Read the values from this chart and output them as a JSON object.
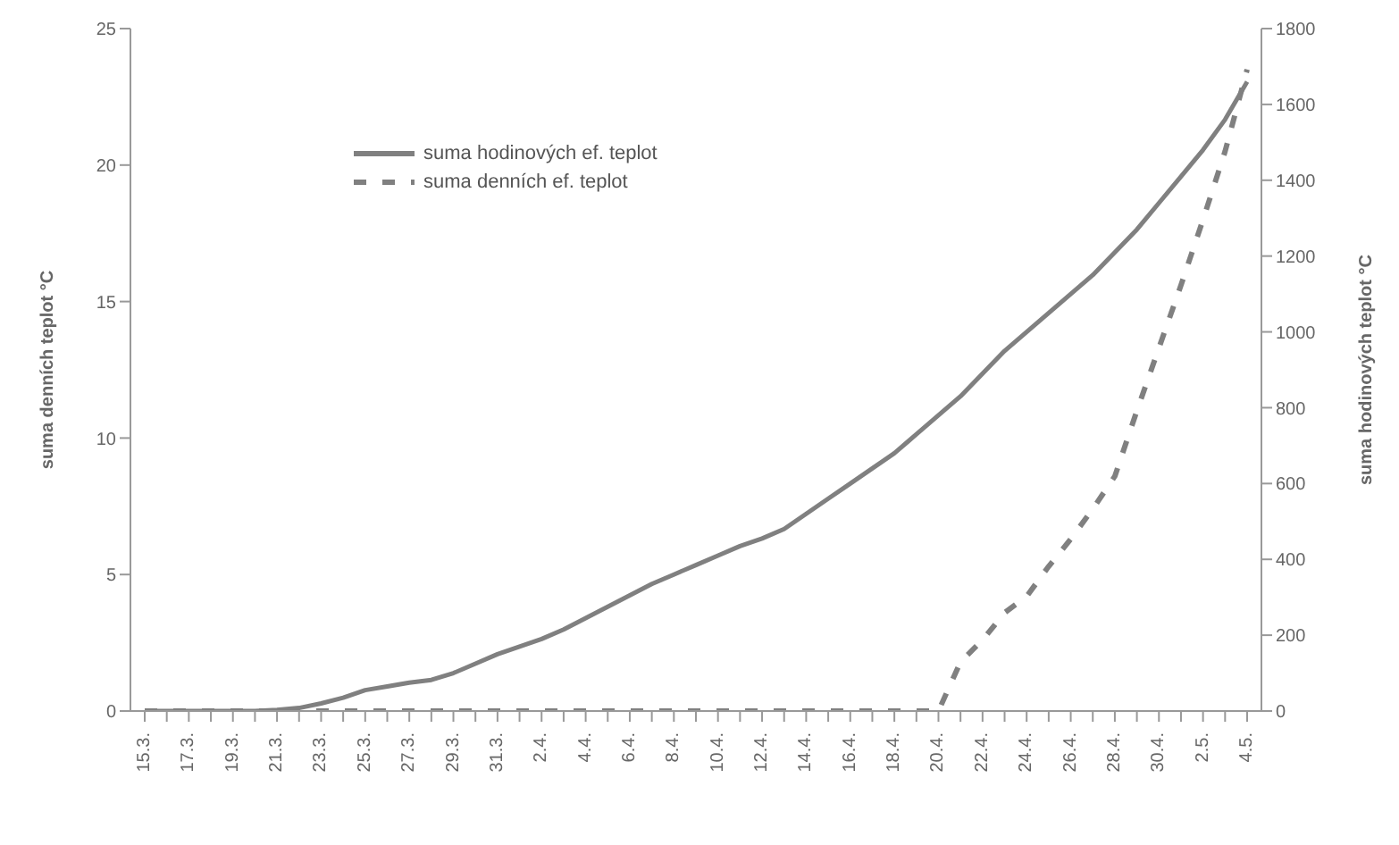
{
  "chart_data": {
    "type": "line",
    "ylabel": "suma denních teplot °C",
    "y2label": "suma hodinových teplot °C",
    "categories": [
      "15.3.",
      null,
      "17.3.",
      null,
      "19.3.",
      null,
      "21.3.",
      null,
      "23.3.",
      null,
      "25.3.",
      null,
      "27.3.",
      null,
      "29.3.",
      null,
      "31.3.",
      null,
      "2.4.",
      null,
      "4.4.",
      null,
      "6.4.",
      null,
      "8.4.",
      null,
      "10.4.",
      null,
      "12.4.",
      null,
      "14.4.",
      null,
      "16.4.",
      null,
      "18.4.",
      null,
      "20.4.",
      null,
      "22.4.",
      null,
      "24.4.",
      null,
      "26.4.",
      null,
      "28.4.",
      null,
      "30.4.",
      null,
      "2.5.",
      null,
      "4.5."
    ],
    "series": [
      {
        "name": "suma hodinových ef. teplot",
        "color": "#808080",
        "axis": "y2",
        "line_style": "solid",
        "values": [
          0,
          0,
          0,
          0,
          0,
          0,
          3,
          8,
          20,
          35,
          55,
          65,
          75,
          82,
          100,
          125,
          150,
          170,
          190,
          215,
          245,
          275,
          305,
          335,
          360,
          385,
          410,
          435,
          455,
          480,
          520,
          560,
          600,
          640,
          680,
          730,
          780,
          830,
          890,
          950,
          1000,
          1050,
          1100,
          1150,
          1210,
          1270,
          1340,
          1410,
          1480,
          1560,
          1660
        ]
      },
      {
        "name": "suma denních ef. teplot",
        "color": "#808080",
        "axis": "y",
        "line_style": "dashed",
        "values": [
          0,
          0,
          0,
          0,
          0,
          0,
          0,
          0,
          0,
          0,
          0,
          0,
          0,
          0,
          0,
          0,
          0,
          0,
          0,
          0,
          0,
          0,
          0,
          0,
          0,
          0,
          0,
          0,
          0,
          0,
          0,
          0,
          0,
          0,
          0,
          0,
          0,
          1.8,
          2.6,
          3.6,
          4.2,
          5.3,
          6.3,
          7.4,
          8.6,
          11.0,
          13.3,
          15.6,
          18.0,
          20.5,
          23.5
        ]
      }
    ],
    "ylim": [
      0,
      25
    ],
    "yticks": [
      0,
      5,
      10,
      15,
      20,
      25
    ],
    "y2lim": [
      0,
      1800
    ],
    "y2ticks": [
      0,
      200,
      400,
      600,
      800,
      1000,
      1200,
      1400,
      1600,
      1800
    ],
    "grid": false,
    "legend": "top left",
    "marker": "none"
  }
}
